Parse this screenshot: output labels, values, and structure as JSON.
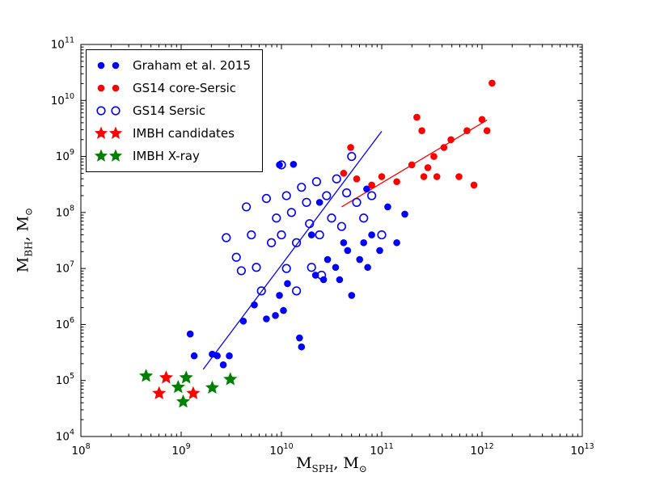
{
  "figure": {
    "background": "#ffffff"
  },
  "axes": {
    "x": {
      "label_main": "M",
      "label_sub": "SPH",
      "label_sep": ", M",
      "label_sun": "⊙"
    },
    "y": {
      "label_main": "M",
      "label_sub": "BH",
      "label_sep": ", M",
      "label_sun": "⊙"
    }
  },
  "legend": {
    "entries": [
      {
        "label": "Graham et al. 2015",
        "marker": "circle",
        "color": "#0000ff",
        "open": false
      },
      {
        "label": "GS14 core-Sersic",
        "marker": "circle",
        "color": "#ff0000",
        "open": false
      },
      {
        "label": "GS14 Sersic",
        "marker": "circle",
        "color": "#0000ff",
        "open": true
      },
      {
        "label": "IMBH candidates",
        "marker": "star",
        "color": "#ff0000",
        "open": false
      },
      {
        "label": "IMBH X-ray",
        "marker": "star",
        "color": "#008000",
        "open": false
      }
    ]
  },
  "chart_data": {
    "type": "scatter",
    "title": "",
    "xlabel": "M_SPH, M_sun",
    "ylabel": "M_BH, M_sun",
    "x_axis": {
      "scale": "log",
      "range_exp": [
        8,
        13
      ],
      "tick_exps": [
        8,
        9,
        10,
        11,
        12,
        13
      ]
    },
    "y_axis": {
      "scale": "log",
      "range_exp": [
        4,
        11
      ],
      "tick_exps": [
        4,
        5,
        6,
        7,
        8,
        9,
        10,
        11
      ]
    },
    "grid": false,
    "legend_position": "upper-left",
    "series": [
      {
        "name": "Graham et al. 2015",
        "marker": "circle",
        "open": false,
        "color": "#0000ff",
        "points_log10": [
          [
            9.09,
            5.83
          ],
          [
            9.13,
            5.44
          ],
          [
            9.31,
            5.47
          ],
          [
            9.36,
            5.44
          ],
          [
            9.42,
            5.28
          ],
          [
            9.48,
            5.44
          ],
          [
            9.62,
            6.06
          ],
          [
            9.73,
            6.35
          ],
          [
            9.85,
            6.1
          ],
          [
            9.94,
            6.16
          ],
          [
            9.98,
            6.52
          ],
          [
            10.02,
            6.25
          ],
          [
            10.06,
            6.73
          ],
          [
            10.18,
            5.76
          ],
          [
            10.2,
            5.6
          ],
          [
            10.3,
            7.6
          ],
          [
            10.34,
            6.88
          ],
          [
            10.38,
            8.18
          ],
          [
            10.42,
            6.8
          ],
          [
            10.46,
            7.16
          ],
          [
            10.54,
            7.02
          ],
          [
            10.58,
            6.8
          ],
          [
            10.62,
            7.46
          ],
          [
            10.66,
            7.32
          ],
          [
            10.7,
            6.52
          ],
          [
            10.78,
            7.16
          ],
          [
            10.82,
            7.46
          ],
          [
            10.86,
            7.02
          ],
          [
            10.9,
            7.6
          ],
          [
            10.98,
            7.32
          ],
          [
            11.06,
            8.1
          ],
          [
            11.15,
            7.46
          ],
          [
            11.23,
            7.97
          ],
          [
            9.98,
            8.85
          ],
          [
            10.12,
            8.86
          ],
          [
            10.85,
            8.42
          ]
        ]
      },
      {
        "name": "GS14 core-Sersic",
        "marker": "circle",
        "open": false,
        "color": "#ff0000",
        "points_log10": [
          [
            10.62,
            8.7
          ],
          [
            10.69,
            9.16
          ],
          [
            10.75,
            8.6
          ],
          [
            10.9,
            8.49
          ],
          [
            11.0,
            8.64
          ],
          [
            11.15,
            8.55
          ],
          [
            11.3,
            8.85
          ],
          [
            11.35,
            9.7
          ],
          [
            11.4,
            9.46
          ],
          [
            11.42,
            8.64
          ],
          [
            11.46,
            8.8
          ],
          [
            11.52,
            9.0
          ],
          [
            11.55,
            8.64
          ],
          [
            11.62,
            9.16
          ],
          [
            11.69,
            9.3
          ],
          [
            11.77,
            8.64
          ],
          [
            11.85,
            9.46
          ],
          [
            11.92,
            8.49
          ],
          [
            12.0,
            9.66
          ],
          [
            12.05,
            9.46
          ],
          [
            12.1,
            10.31
          ]
        ]
      },
      {
        "name": "GS14 Sersic",
        "marker": "circle",
        "open": true,
        "color": "#0000ff",
        "points_log10": [
          [
            9.45,
            7.55
          ],
          [
            9.55,
            7.2
          ],
          [
            9.6,
            6.96
          ],
          [
            9.65,
            8.1
          ],
          [
            9.7,
            7.6
          ],
          [
            9.75,
            7.02
          ],
          [
            9.8,
            6.6
          ],
          [
            9.85,
            8.25
          ],
          [
            9.9,
            7.46
          ],
          [
            9.95,
            7.9
          ],
          [
            10.0,
            8.85
          ],
          [
            10.0,
            7.6
          ],
          [
            10.05,
            8.3
          ],
          [
            10.05,
            7.0
          ],
          [
            10.1,
            8.0
          ],
          [
            10.15,
            7.46
          ],
          [
            10.15,
            6.6
          ],
          [
            10.2,
            8.45
          ],
          [
            10.25,
            8.18
          ],
          [
            10.28,
            7.8
          ],
          [
            10.3,
            7.02
          ],
          [
            10.35,
            8.55
          ],
          [
            10.38,
            7.6
          ],
          [
            10.4,
            6.88
          ],
          [
            10.45,
            8.3
          ],
          [
            10.5,
            7.9
          ],
          [
            10.55,
            8.6
          ],
          [
            10.6,
            7.75
          ],
          [
            10.65,
            8.35
          ],
          [
            10.7,
            9.0
          ],
          [
            10.75,
            8.18
          ],
          [
            10.82,
            7.9
          ],
          [
            10.9,
            8.3
          ],
          [
            11.0,
            7.6
          ]
        ]
      },
      {
        "name": "IMBH candidates",
        "marker": "star",
        "open": false,
        "color": "#ff0000",
        "points_log10": [
          [
            8.78,
            4.77
          ],
          [
            8.85,
            5.05
          ],
          [
            9.12,
            4.77
          ]
        ]
      },
      {
        "name": "IMBH X-ray",
        "marker": "star",
        "open": false,
        "color": "#008000",
        "points_log10": [
          [
            8.65,
            5.08
          ],
          [
            8.97,
            4.88
          ],
          [
            9.02,
            4.62
          ],
          [
            9.05,
            5.05
          ],
          [
            9.31,
            4.87
          ],
          [
            9.49,
            5.02
          ]
        ]
      }
    ],
    "lines": [
      {
        "name": "sersic-fit-line",
        "color": "#0000ff",
        "from_log10": [
          9.22,
          5.2
        ],
        "to_log10": [
          11.0,
          9.45
        ]
      },
      {
        "name": "core-sersic-fit-line",
        "color": "#ff0000",
        "from_log10": [
          10.6,
          8.1
        ],
        "to_log10": [
          12.05,
          9.65
        ]
      }
    ]
  }
}
